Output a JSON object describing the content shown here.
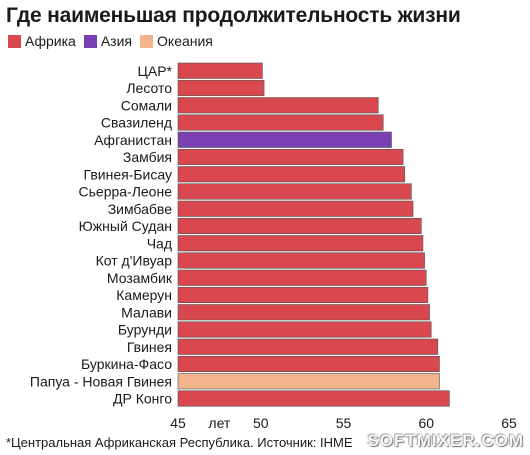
{
  "title": "Где наименьшая продолжительность жизни",
  "legend": [
    {
      "label": "Африка",
      "color": "#d9474f"
    },
    {
      "label": "Азия",
      "color": "#7a3fb0"
    },
    {
      "label": "Океания",
      "color": "#f2b48c"
    }
  ],
  "footnote": "*Центральная Африканская Республика. Источник: IHME",
  "watermark": "SOFTMIXER.COM",
  "chart_data": {
    "type": "bar",
    "orientation": "horizontal",
    "title": "Где наименьшая продолжительность жизни",
    "xlabel": "лет",
    "xlim": [
      45,
      65
    ],
    "xticks": [
      45,
      50,
      55,
      60,
      65
    ],
    "grid": false,
    "legend_position": "top-left",
    "series_colors": {
      "Африка": "#d9474f",
      "Азия": "#7a3fb0",
      "Океания": "#f2b48c"
    },
    "categories": [
      "ЦАР*",
      "Лесото",
      "Сомали",
      "Свазиленд",
      "Афганистан",
      "Замбия",
      "Гвинея-Бисау",
      "Сьерра-Леоне",
      "Зимбабве",
      "Южный Судан",
      "Чад",
      "Кот д'Ивуар",
      "Мозамбик",
      "Камерун",
      "Малави",
      "Бурунди",
      "Гвинея",
      "Буркина-Фасо",
      "Папуа - Новая Гвинея",
      "ДР Конго"
    ],
    "region": [
      "Африка",
      "Африка",
      "Африка",
      "Африка",
      "Азия",
      "Африка",
      "Африка",
      "Африка",
      "Африка",
      "Африка",
      "Африка",
      "Африка",
      "Африка",
      "Африка",
      "Африка",
      "Африка",
      "Африка",
      "Африка",
      "Океания",
      "Африка"
    ],
    "values": [
      50.1,
      50.2,
      57.1,
      57.4,
      57.9,
      58.6,
      58.7,
      59.1,
      59.2,
      59.7,
      59.8,
      59.9,
      60.0,
      60.1,
      60.2,
      60.3,
      60.7,
      60.8,
      60.8,
      61.4
    ]
  }
}
